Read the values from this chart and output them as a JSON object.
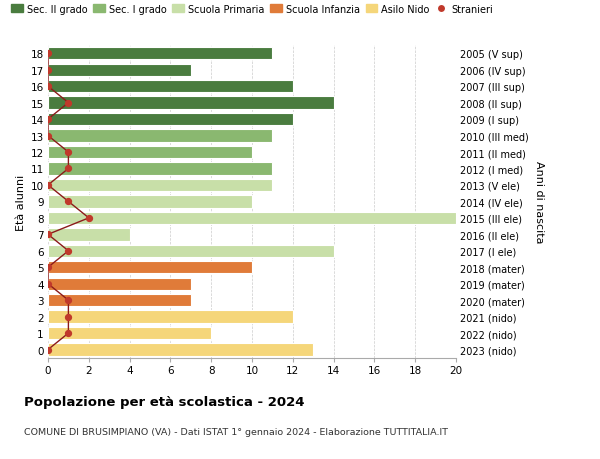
{
  "ages": [
    0,
    1,
    2,
    3,
    4,
    5,
    6,
    7,
    8,
    9,
    10,
    11,
    12,
    13,
    14,
    15,
    16,
    17,
    18
  ],
  "years": [
    "2023 (nido)",
    "2022 (nido)",
    "2021 (nido)",
    "2020 (mater)",
    "2019 (mater)",
    "2018 (mater)",
    "2017 (I ele)",
    "2016 (II ele)",
    "2015 (III ele)",
    "2014 (IV ele)",
    "2013 (V ele)",
    "2012 (I med)",
    "2011 (II med)",
    "2010 (III med)",
    "2009 (I sup)",
    "2008 (II sup)",
    "2007 (III sup)",
    "2006 (IV sup)",
    "2005 (V sup)"
  ],
  "bar_values": [
    13,
    8,
    12,
    7,
    7,
    10,
    14,
    4,
    20,
    10,
    11,
    11,
    10,
    11,
    12,
    14,
    12,
    7,
    11
  ],
  "bar_colors": [
    "#f5d67a",
    "#f5d67a",
    "#f5d67a",
    "#e07b39",
    "#e07b39",
    "#e07b39",
    "#c8dfa8",
    "#c8dfa8",
    "#c8dfa8",
    "#c8dfa8",
    "#c8dfa8",
    "#8ab870",
    "#8ab870",
    "#8ab870",
    "#4a7c3f",
    "#4a7c3f",
    "#4a7c3f",
    "#4a7c3f",
    "#4a7c3f"
  ],
  "stranieri_values": [
    0,
    1,
    1,
    1,
    0,
    0,
    1,
    0,
    2,
    1,
    0,
    1,
    1,
    0,
    0,
    1,
    0,
    0,
    0
  ],
  "legend_labels": [
    "Sec. II grado",
    "Sec. I grado",
    "Scuola Primaria",
    "Scuola Infanzia",
    "Asilo Nido",
    "Stranieri"
  ],
  "legend_colors": [
    "#4a7c3f",
    "#8ab870",
    "#c8dfa8",
    "#e07b39",
    "#f5d67a",
    "#c0392b"
  ],
  "title": "Popolazione per età scolastica - 2024",
  "subtitle": "COMUNE DI BRUSIMPIANO (VA) - Dati ISTAT 1° gennaio 2024 - Elaborazione TUTTITALIA.IT",
  "ylabel_left": "Età alunni",
  "ylabel_right": "Anni di nascita",
  "xlim": [
    0,
    20
  ],
  "background_color": "#ffffff",
  "grid_color": "#cccccc",
  "stranieri_color": "#c0392b",
  "stranieri_line_color": "#8b1a1a"
}
